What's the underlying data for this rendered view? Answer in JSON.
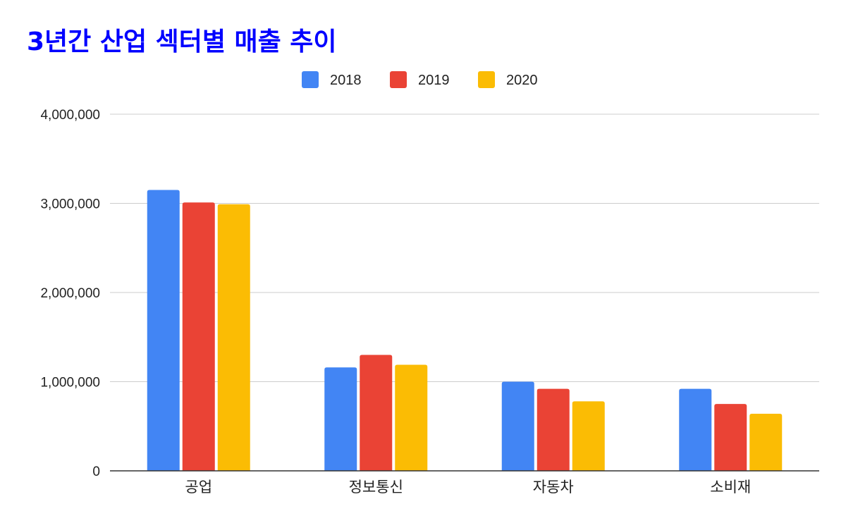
{
  "chart_data": {
    "type": "bar",
    "title": "3년간 산업 섹터별 매출 추이",
    "title_color": "#0000ff",
    "categories": [
      "공업",
      "정보통신",
      "자동차",
      "소비재"
    ],
    "series": [
      {
        "name": "2018",
        "color": "#4285f4",
        "values": [
          3150000,
          1160000,
          1000000,
          920000
        ]
      },
      {
        "name": "2019",
        "color": "#ea4335",
        "values": [
          3010000,
          1300000,
          920000,
          750000
        ]
      },
      {
        "name": "2020",
        "color": "#fbbc04",
        "values": [
          2990000,
          1190000,
          780000,
          640000
        ]
      }
    ],
    "ylim": [
      0,
      4000000
    ],
    "yticks": [
      0,
      1000000,
      2000000,
      3000000,
      4000000
    ],
    "ytick_labels": [
      "0",
      "1,000,000",
      "2,000,000",
      "3,000,000",
      "4,000,000"
    ],
    "xlabel": "",
    "ylabel": "",
    "grid": true,
    "legend_position": "top-center"
  }
}
